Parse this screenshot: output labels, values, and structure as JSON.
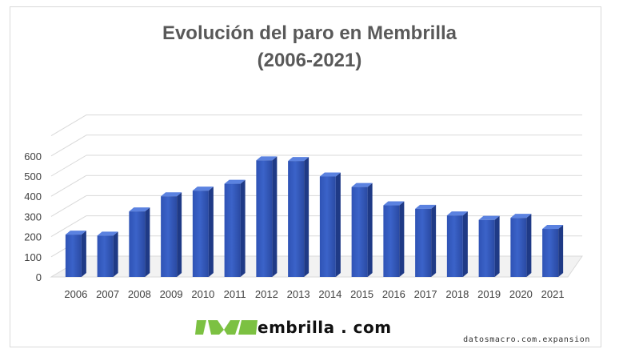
{
  "chart_data": {
    "type": "bar",
    "title": "Evolución del paro en Membrilla",
    "subtitle": "(2006-2021)",
    "categories": [
      "2006",
      "2007",
      "2008",
      "2009",
      "2010",
      "2011",
      "2012",
      "2013",
      "2014",
      "2015",
      "2016",
      "2017",
      "2018",
      "2019",
      "2020",
      "2021"
    ],
    "values": [
      210,
      205,
      325,
      400,
      428,
      462,
      578,
      575,
      498,
      446,
      355,
      338,
      305,
      283,
      293,
      238
    ],
    "yticks": [
      0,
      100,
      200,
      300,
      400,
      500,
      600
    ],
    "ylim": [
      0,
      700
    ],
    "grid": true,
    "style": "3d",
    "bar_color": "#3b63c9"
  },
  "logo": {
    "text": "embrilla . com",
    "color": "#7cc142"
  },
  "source": "datosmacro.com.expansion"
}
